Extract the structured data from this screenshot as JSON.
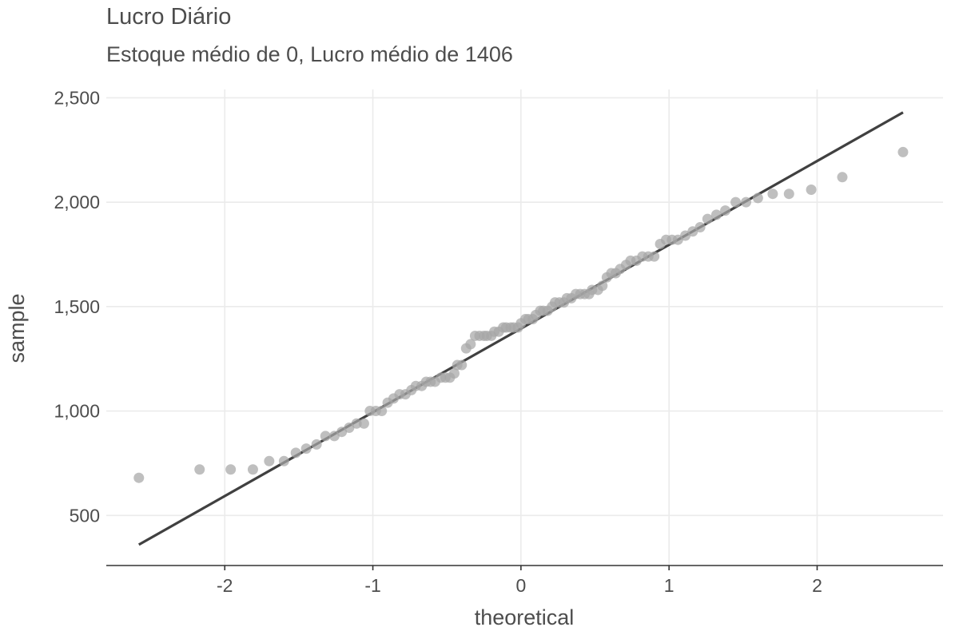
{
  "chart_data": {
    "type": "scatter",
    "title": "Lucro Diário",
    "subtitle": "Estoque médio de 0, Lucro médio de 1406",
    "xlabel": "theoretical",
    "ylabel": "sample",
    "xlim": [
      -2.8,
      2.85
    ],
    "ylim": [
      260,
      2540
    ],
    "x_ticks": [
      -2,
      -1,
      0,
      1,
      2
    ],
    "x_tick_labels": [
      "-2",
      "-1",
      "0",
      "1",
      "2"
    ],
    "y_ticks": [
      500,
      1000,
      1500,
      2000,
      2500
    ],
    "y_tick_labels": [
      "500",
      "1,000",
      "1,500",
      "2,000",
      "2,500"
    ],
    "grid": true,
    "reference_line": {
      "x": [
        -2.58,
        2.58
      ],
      "y": [
        360,
        2430
      ]
    },
    "colors": {
      "points": "#a6a6a6",
      "line": "#404040",
      "grid": "#ebebeb"
    },
    "points": [
      [
        -2.58,
        680
      ],
      [
        -2.17,
        720
      ],
      [
        -1.96,
        720
      ],
      [
        -1.81,
        720
      ],
      [
        -1.7,
        760
      ],
      [
        -1.6,
        760
      ],
      [
        -1.52,
        800
      ],
      [
        -1.45,
        820
      ],
      [
        -1.38,
        840
      ],
      [
        -1.32,
        880
      ],
      [
        -1.26,
        880
      ],
      [
        -1.21,
        900
      ],
      [
        -1.16,
        920
      ],
      [
        -1.11,
        940
      ],
      [
        -1.06,
        940
      ],
      [
        -1.02,
        1000
      ],
      [
        -0.98,
        1000
      ],
      [
        -0.94,
        1000
      ],
      [
        -0.9,
        1040
      ],
      [
        -0.86,
        1060
      ],
      [
        -0.82,
        1080
      ],
      [
        -0.78,
        1080
      ],
      [
        -0.74,
        1100
      ],
      [
        -0.71,
        1120
      ],
      [
        -0.67,
        1120
      ],
      [
        -0.64,
        1140
      ],
      [
        -0.61,
        1140
      ],
      [
        -0.58,
        1140
      ],
      [
        -0.54,
        1160
      ],
      [
        -0.51,
        1160
      ],
      [
        -0.48,
        1160
      ],
      [
        -0.45,
        1180
      ],
      [
        -0.43,
        1220
      ],
      [
        -0.4,
        1220
      ],
      [
        -0.37,
        1300
      ],
      [
        -0.34,
        1320
      ],
      [
        -0.31,
        1360
      ],
      [
        -0.28,
        1360
      ],
      [
        -0.25,
        1360
      ],
      [
        -0.23,
        1360
      ],
      [
        -0.2,
        1360
      ],
      [
        -0.18,
        1380
      ],
      [
        -0.15,
        1380
      ],
      [
        -0.12,
        1400
      ],
      [
        -0.1,
        1400
      ],
      [
        -0.07,
        1400
      ],
      [
        -0.05,
        1400
      ],
      [
        -0.02,
        1400
      ],
      [
        0.0,
        1420
      ],
      [
        0.03,
        1440
      ],
      [
        0.05,
        1440
      ],
      [
        0.08,
        1440
      ],
      [
        0.1,
        1460
      ],
      [
        0.13,
        1480
      ],
      [
        0.15,
        1480
      ],
      [
        0.18,
        1480
      ],
      [
        0.21,
        1500
      ],
      [
        0.23,
        1520
      ],
      [
        0.26,
        1520
      ],
      [
        0.29,
        1520
      ],
      [
        0.31,
        1540
      ],
      [
        0.34,
        1540
      ],
      [
        0.37,
        1560
      ],
      [
        0.4,
        1560
      ],
      [
        0.43,
        1560
      ],
      [
        0.46,
        1560
      ],
      [
        0.48,
        1580
      ],
      [
        0.52,
        1580
      ],
      [
        0.55,
        1600
      ],
      [
        0.58,
        1640
      ],
      [
        0.61,
        1660
      ],
      [
        0.64,
        1660
      ],
      [
        0.67,
        1680
      ],
      [
        0.71,
        1700
      ],
      [
        0.74,
        1720
      ],
      [
        0.78,
        1720
      ],
      [
        0.82,
        1740
      ],
      [
        0.86,
        1740
      ],
      [
        0.9,
        1740
      ],
      [
        0.94,
        1800
      ],
      [
        0.98,
        1820
      ],
      [
        1.02,
        1820
      ],
      [
        1.06,
        1820
      ],
      [
        1.11,
        1840
      ],
      [
        1.16,
        1860
      ],
      [
        1.21,
        1880
      ],
      [
        1.26,
        1920
      ],
      [
        1.32,
        1940
      ],
      [
        1.38,
        1960
      ],
      [
        1.45,
        2000
      ],
      [
        1.52,
        2000
      ],
      [
        1.6,
        2020
      ],
      [
        1.7,
        2040
      ],
      [
        1.81,
        2040
      ],
      [
        1.96,
        2060
      ],
      [
        2.17,
        2120
      ],
      [
        2.58,
        2240
      ]
    ]
  }
}
